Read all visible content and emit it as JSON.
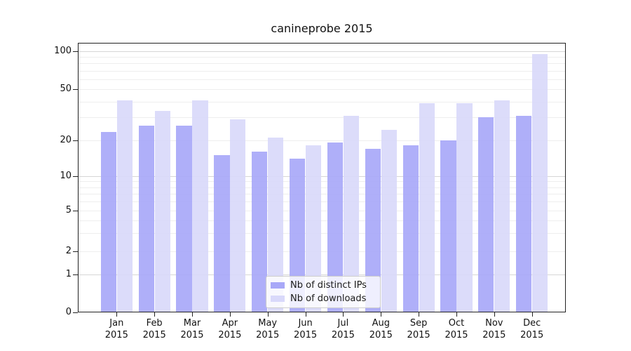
{
  "chart_data": {
    "type": "bar",
    "title": "canineprobe 2015",
    "categories": [
      "Jan",
      "Feb",
      "Mar",
      "Apr",
      "May",
      "Jun",
      "Jul",
      "Aug",
      "Sep",
      "Oct",
      "Nov",
      "Dec"
    ],
    "year_label": "2015",
    "series": [
      {
        "name": "Nb of distinct IPs",
        "color": "#a8a8f8",
        "values": [
          23,
          26,
          26,
          15,
          16,
          14,
          19,
          17,
          18,
          20,
          30,
          31
        ]
      },
      {
        "name": "Nb of downloads",
        "color": "#d9d9fa",
        "values": [
          41,
          34,
          41,
          29,
          21,
          18,
          31,
          24,
          39,
          39,
          41,
          95
        ]
      }
    ],
    "yticks": [
      0,
      1,
      2,
      5,
      10,
      20,
      50,
      100
    ],
    "ylim": [
      0,
      124
    ],
    "yscale": "symlog-like (linear 0-1, log above)",
    "grid": "horizontal major+minor log lines",
    "legend_position": "lower center",
    "colors": {
      "major_grid": "#d6d6d6",
      "minor_grid": "#eeeeee",
      "axis": "#222222",
      "text": "#111111"
    }
  }
}
